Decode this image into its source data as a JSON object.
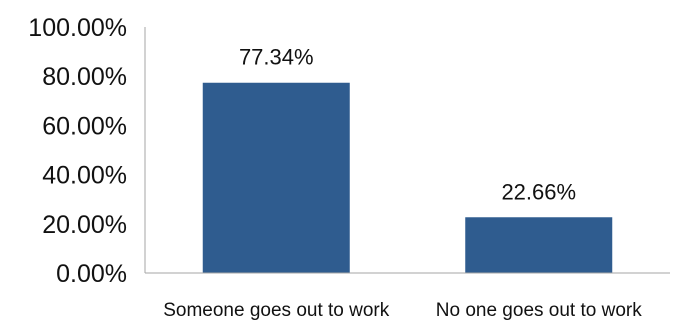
{
  "chart_data": {
    "type": "bar",
    "categories": [
      "Someone goes out to work",
      "No one goes out to work"
    ],
    "values": [
      77.34,
      22.66
    ],
    "data_labels": [
      "77.34%",
      "22.66%"
    ],
    "y_tick_labels": [
      "0.00%",
      "20.00%",
      "40.00%",
      "60.00%",
      "80.00%",
      "100.00%"
    ],
    "y_ticks": [
      0,
      20,
      40,
      60,
      80,
      100
    ],
    "ylim": [
      0,
      100
    ],
    "title": "",
    "xlabel": "",
    "ylabel": "",
    "grid": false,
    "legend": false,
    "bar_color": "#2F5C8F",
    "axis_color": "#A6A6A6"
  }
}
